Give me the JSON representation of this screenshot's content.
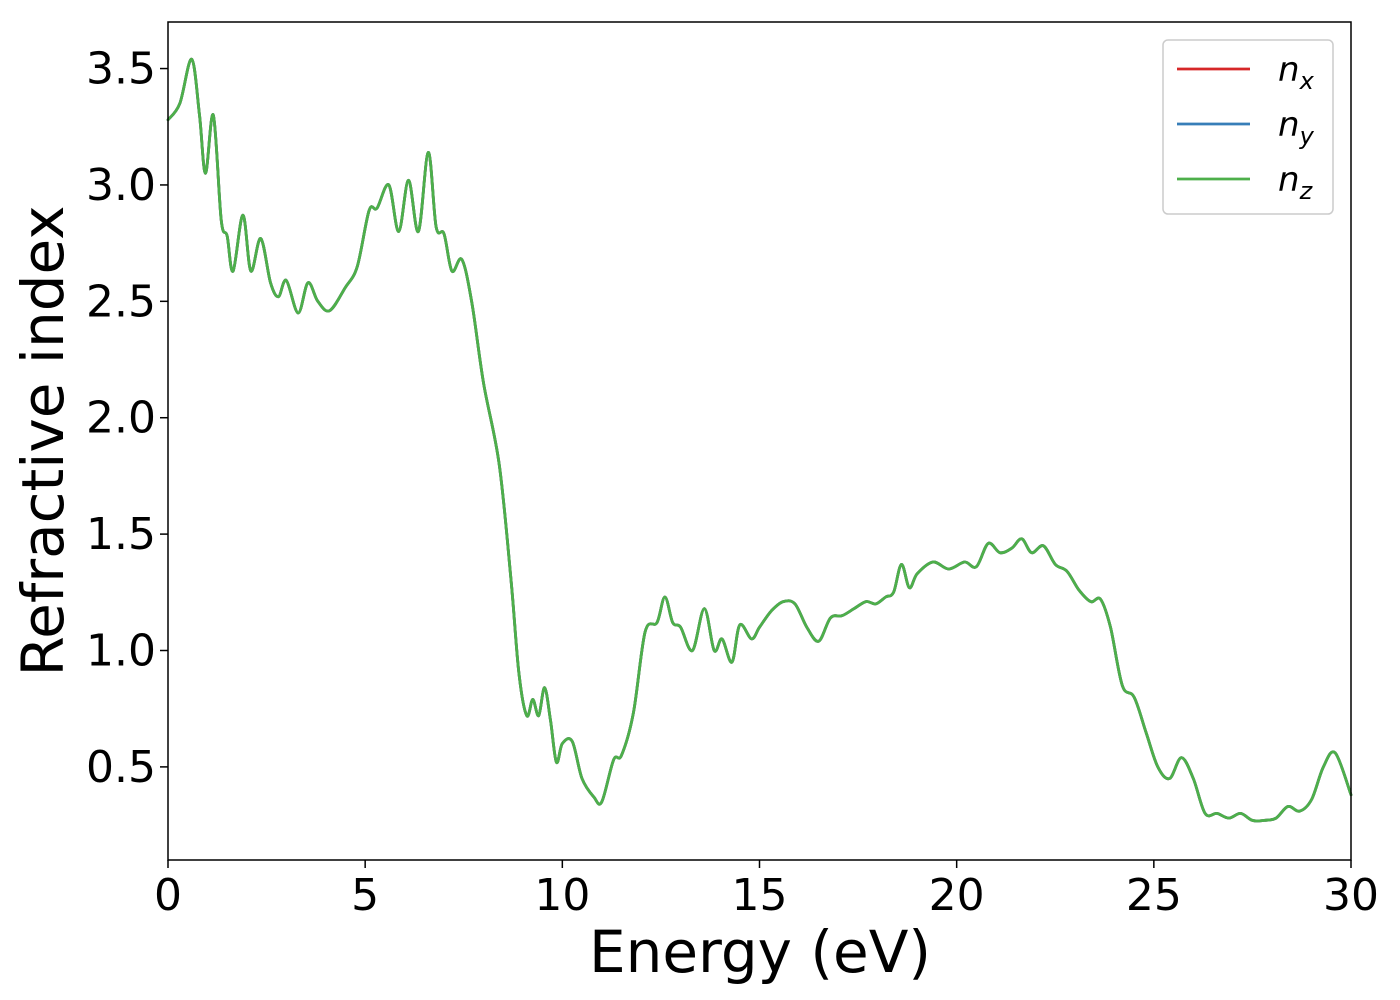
{
  "chart_data": {
    "type": "line",
    "xlabel": "Energy (eV)",
    "ylabel": "Refractive index",
    "xlim": [
      0,
      30
    ],
    "ylim": [
      0.1,
      3.7
    ],
    "xticks": [
      0,
      5,
      10,
      15,
      20,
      25,
      30
    ],
    "xtick_labels": [
      "0",
      "5",
      "10",
      "15",
      "20",
      "25",
      "30"
    ],
    "yticks": [
      0.5,
      1.0,
      1.5,
      2.0,
      2.5,
      3.0,
      3.5
    ],
    "ytick_labels": [
      "0.5",
      "1.0",
      "1.5",
      "2.0",
      "2.5",
      "3.0",
      "3.5"
    ],
    "grid": false,
    "legend_position": "top-right",
    "x": [
      0,
      0.3,
      0.6,
      0.8,
      0.95,
      1.15,
      1.35,
      1.5,
      1.65,
      1.9,
      2.1,
      2.35,
      2.6,
      2.8,
      3.0,
      3.3,
      3.55,
      3.8,
      4.1,
      4.5,
      4.8,
      5.1,
      5.3,
      5.6,
      5.85,
      6.1,
      6.35,
      6.6,
      6.8,
      7.0,
      7.2,
      7.45,
      7.7,
      8.0,
      8.4,
      8.7,
      8.9,
      9.1,
      9.25,
      9.4,
      9.55,
      9.7,
      9.85,
      10.0,
      10.25,
      10.5,
      10.8,
      11.0,
      11.3,
      11.5,
      11.8,
      12.1,
      12.4,
      12.6,
      12.8,
      13.0,
      13.3,
      13.6,
      13.85,
      14.05,
      14.3,
      14.5,
      14.8,
      15.0,
      15.3,
      15.6,
      15.9,
      16.2,
      16.5,
      16.8,
      17.1,
      17.4,
      17.7,
      17.95,
      18.2,
      18.4,
      18.6,
      18.8,
      19.0,
      19.4,
      19.8,
      20.2,
      20.5,
      20.8,
      21.1,
      21.4,
      21.65,
      21.9,
      22.2,
      22.5,
      22.8,
      23.1,
      23.4,
      23.65,
      23.9,
      24.2,
      24.5,
      24.8,
      25.1,
      25.4,
      25.7,
      26.0,
      26.3,
      26.6,
      26.9,
      27.2,
      27.5,
      27.8,
      28.1,
      28.4,
      28.7,
      29.0,
      29.3,
      29.6,
      30.0
    ],
    "series": [
      {
        "name": "n_x",
        "label_base": "n",
        "label_sub": "x",
        "color": "#d62728",
        "y": [
          3.28,
          3.35,
          3.54,
          3.3,
          3.05,
          3.3,
          2.85,
          2.78,
          2.63,
          2.87,
          2.63,
          2.77,
          2.58,
          2.52,
          2.59,
          2.45,
          2.58,
          2.5,
          2.46,
          2.56,
          2.65,
          2.89,
          2.9,
          3.0,
          2.8,
          3.02,
          2.8,
          3.14,
          2.82,
          2.79,
          2.63,
          2.68,
          2.5,
          2.15,
          1.8,
          1.3,
          0.9,
          0.72,
          0.79,
          0.72,
          0.84,
          0.7,
          0.52,
          0.6,
          0.61,
          0.45,
          0.37,
          0.35,
          0.53,
          0.55,
          0.73,
          1.08,
          1.12,
          1.23,
          1.12,
          1.1,
          1.0,
          1.18,
          1.0,
          1.05,
          0.95,
          1.11,
          1.05,
          1.1,
          1.17,
          1.21,
          1.2,
          1.1,
          1.04,
          1.14,
          1.15,
          1.18,
          1.21,
          1.2,
          1.23,
          1.25,
          1.37,
          1.27,
          1.33,
          1.38,
          1.35,
          1.38,
          1.36,
          1.46,
          1.42,
          1.44,
          1.48,
          1.42,
          1.45,
          1.37,
          1.34,
          1.26,
          1.21,
          1.22,
          1.1,
          0.85,
          0.8,
          0.65,
          0.5,
          0.45,
          0.54,
          0.45,
          0.3,
          0.3,
          0.28,
          0.3,
          0.27,
          0.27,
          0.28,
          0.33,
          0.31,
          0.36,
          0.5,
          0.56,
          0.38
        ]
      },
      {
        "name": "n_y",
        "label_base": "n",
        "label_sub": "y",
        "color": "#377eb8",
        "y": [
          3.28,
          3.35,
          3.54,
          3.3,
          3.05,
          3.3,
          2.85,
          2.78,
          2.63,
          2.87,
          2.63,
          2.77,
          2.58,
          2.52,
          2.59,
          2.45,
          2.58,
          2.5,
          2.46,
          2.56,
          2.65,
          2.89,
          2.9,
          3.0,
          2.8,
          3.02,
          2.8,
          3.14,
          2.82,
          2.79,
          2.63,
          2.68,
          2.5,
          2.15,
          1.8,
          1.3,
          0.9,
          0.72,
          0.79,
          0.72,
          0.84,
          0.7,
          0.52,
          0.6,
          0.61,
          0.45,
          0.37,
          0.35,
          0.53,
          0.55,
          0.73,
          1.08,
          1.12,
          1.23,
          1.12,
          1.1,
          1.0,
          1.18,
          1.0,
          1.05,
          0.95,
          1.11,
          1.05,
          1.1,
          1.17,
          1.21,
          1.2,
          1.1,
          1.04,
          1.14,
          1.15,
          1.18,
          1.21,
          1.2,
          1.23,
          1.25,
          1.37,
          1.27,
          1.33,
          1.38,
          1.35,
          1.38,
          1.36,
          1.46,
          1.42,
          1.44,
          1.48,
          1.42,
          1.45,
          1.37,
          1.34,
          1.26,
          1.21,
          1.22,
          1.1,
          0.85,
          0.8,
          0.65,
          0.5,
          0.45,
          0.54,
          0.45,
          0.3,
          0.3,
          0.28,
          0.3,
          0.27,
          0.27,
          0.28,
          0.33,
          0.31,
          0.36,
          0.5,
          0.56,
          0.38
        ]
      },
      {
        "name": "n_z",
        "label_base": "n",
        "label_sub": "z",
        "color": "#4daf4a",
        "y": [
          3.28,
          3.35,
          3.54,
          3.3,
          3.05,
          3.3,
          2.85,
          2.78,
          2.63,
          2.87,
          2.63,
          2.77,
          2.58,
          2.52,
          2.59,
          2.45,
          2.58,
          2.5,
          2.46,
          2.56,
          2.65,
          2.89,
          2.9,
          3.0,
          2.8,
          3.02,
          2.8,
          3.14,
          2.82,
          2.79,
          2.63,
          2.68,
          2.5,
          2.15,
          1.8,
          1.3,
          0.9,
          0.72,
          0.79,
          0.72,
          0.84,
          0.7,
          0.52,
          0.6,
          0.61,
          0.45,
          0.37,
          0.35,
          0.53,
          0.55,
          0.73,
          1.08,
          1.12,
          1.23,
          1.12,
          1.1,
          1.0,
          1.18,
          1.0,
          1.05,
          0.95,
          1.11,
          1.05,
          1.1,
          1.17,
          1.21,
          1.2,
          1.1,
          1.04,
          1.14,
          1.15,
          1.18,
          1.21,
          1.2,
          1.23,
          1.25,
          1.37,
          1.27,
          1.33,
          1.38,
          1.35,
          1.38,
          1.36,
          1.46,
          1.42,
          1.44,
          1.48,
          1.42,
          1.45,
          1.37,
          1.34,
          1.26,
          1.21,
          1.22,
          1.1,
          0.85,
          0.8,
          0.65,
          0.5,
          0.45,
          0.54,
          0.45,
          0.3,
          0.3,
          0.28,
          0.3,
          0.27,
          0.27,
          0.28,
          0.33,
          0.31,
          0.36,
          0.5,
          0.56,
          0.38
        ]
      }
    ]
  }
}
